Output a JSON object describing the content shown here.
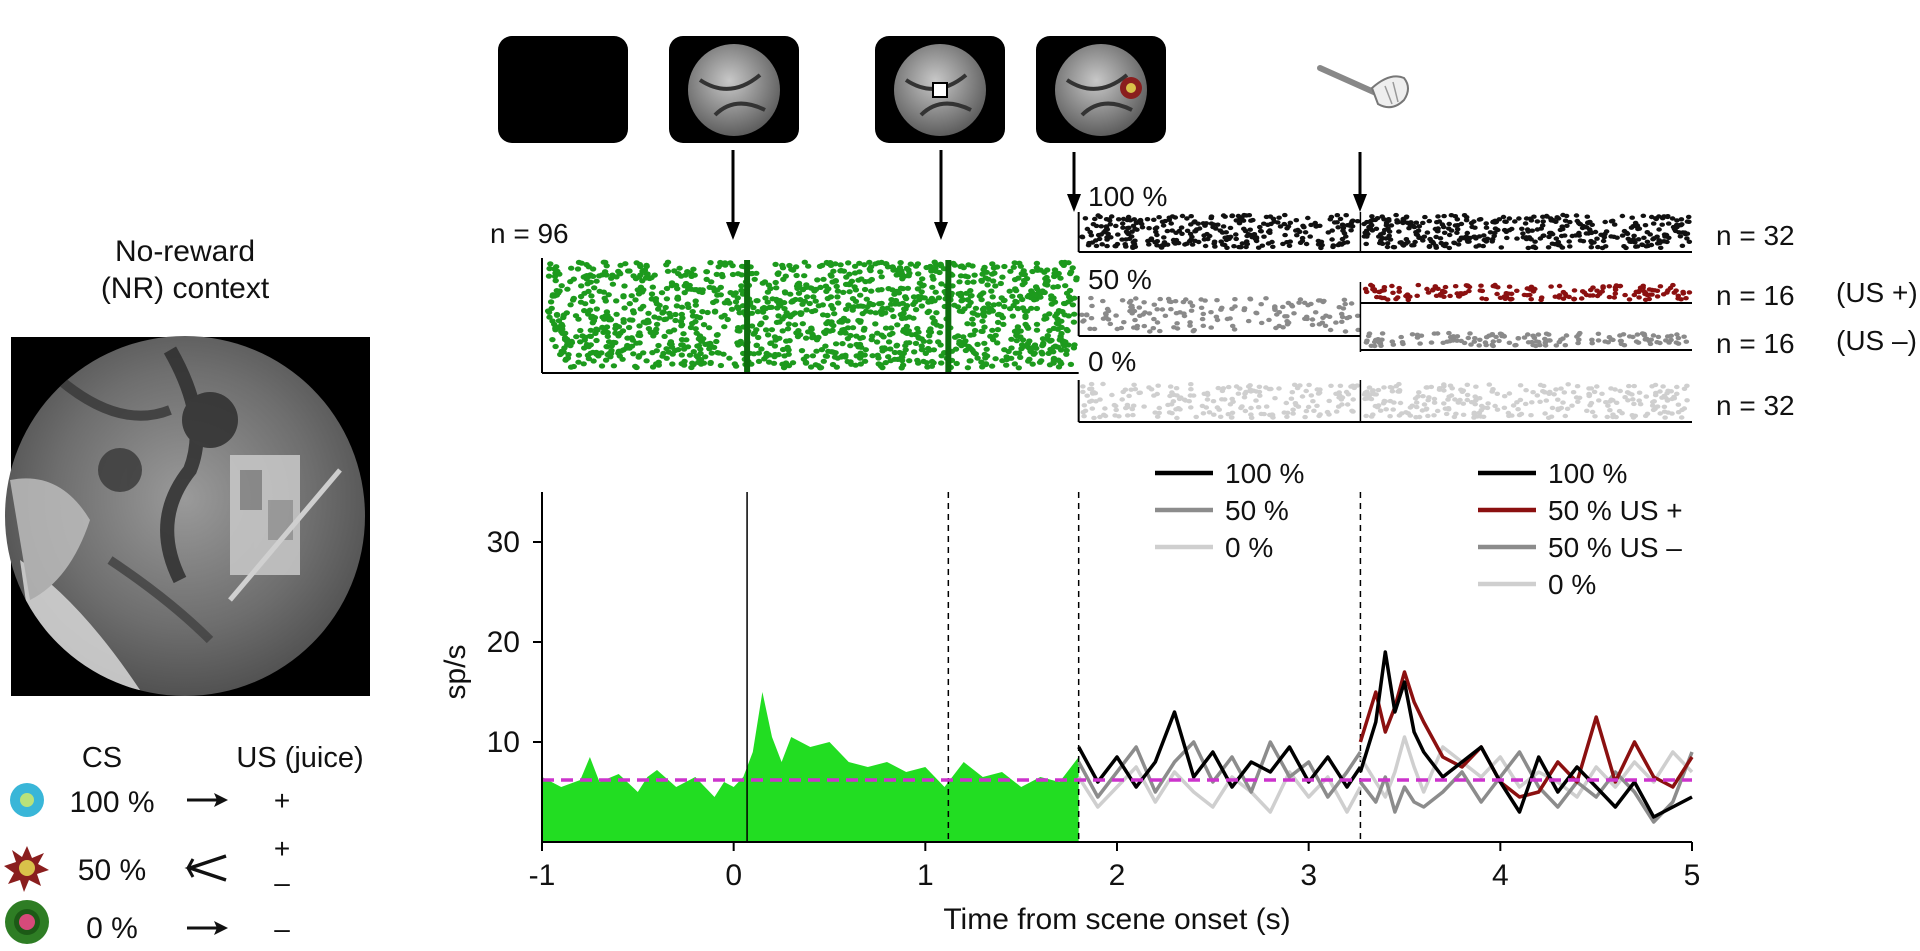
{
  "context": {
    "title_line1": "No-reward",
    "title_line2": "(NR) context"
  },
  "legend_table": {
    "cs_header": "CS",
    "us_header": "US (juice)",
    "rows": [
      {
        "prob": "100 %",
        "us": "+",
        "icon": "cyan-flower-icon",
        "color": "#39b6d8"
      },
      {
        "prob": "50 %",
        "us_plus": "+",
        "us_minus": "–",
        "icon": "star-burst-icon",
        "color": "#8a1e1e"
      },
      {
        "prob": "0 %",
        "us": "–",
        "icon": "green-gear-icon",
        "color": "#2e7d24"
      }
    ]
  },
  "timeline": {
    "stimulus_frames": [
      "blank-screen",
      "scene",
      "scene-with-fixation",
      "scene-with-cs"
    ],
    "reward_icon": "juice-spout-icon"
  },
  "raster": {
    "n_main": "n = 96",
    "main_color": "#1d9a1d",
    "groups": [
      {
        "label": "100 %",
        "n": "n = 32",
        "color": "#111111"
      },
      {
        "label": "50 %",
        "n_plus": "n = 16",
        "n_minus": "n = 16",
        "tag_plus": "(US +)",
        "tag_minus": "(US –)",
        "color": "#8a8a8a",
        "color_plus": "#8b1010"
      },
      {
        "label": "0 %",
        "n": "n = 32",
        "color": "#cfcfcf"
      }
    ]
  },
  "legend_cs": [
    {
      "label": "100 %",
      "color": "#000000"
    },
    {
      "label": "50 %",
      "color": "#8c8c8c"
    },
    {
      "label": "0 %",
      "color": "#cfcfcf"
    }
  ],
  "legend_us": [
    {
      "label": "100 %",
      "color": "#000000"
    },
    {
      "label": "50 % US +",
      "color": "#8b1010"
    },
    {
      "label": "50 % US –",
      "color": "#8c8c8c"
    },
    {
      "label": "0 %",
      "color": "#cfcfcf"
    }
  ],
  "chart_data": {
    "type": "line",
    "xlabel": "Time from scene onset (s)",
    "ylabel": "sp/s",
    "xlim": [
      -1,
      5
    ],
    "ylim": [
      0,
      35
    ],
    "xticks": [
      -1,
      0,
      1,
      2,
      3,
      4,
      5
    ],
    "xtick_labels": [
      "-1",
      "0",
      "1",
      "2",
      "3",
      "4",
      "5"
    ],
    "yticks": [
      10,
      20,
      30
    ],
    "ytick_labels": [
      "10",
      "20",
      "30"
    ],
    "event_lines": {
      "scene_onset": 0.07,
      "fixation": 1.12,
      "cs_onset": 1.8,
      "us_onset": 3.27
    },
    "baseline": 6.2,
    "baseline_color": "#cc33cc",
    "area_color": "#22dd22",
    "scene_response": {
      "x": [
        -1.0,
        -0.9,
        -0.8,
        -0.75,
        -0.7,
        -0.6,
        -0.5,
        -0.45,
        -0.4,
        -0.3,
        -0.2,
        -0.1,
        -0.05,
        0.0,
        0.05,
        0.1,
        0.15,
        0.2,
        0.25,
        0.3,
        0.4,
        0.5,
        0.6,
        0.7,
        0.8,
        0.9,
        1.0,
        1.1,
        1.2,
        1.3,
        1.4,
        1.5,
        1.6,
        1.7,
        1.8
      ],
      "y": [
        6.5,
        5.5,
        6.2,
        8.5,
        6.0,
        6.8,
        5.0,
        6.5,
        7.2,
        5.5,
        6.5,
        4.5,
        6.0,
        5.5,
        6.5,
        9.0,
        15.0,
        10.5,
        8.0,
        10.5,
        9.5,
        10.0,
        8.0,
        7.5,
        8.0,
        7.0,
        7.5,
        5.5,
        8.0,
        6.5,
        7.0,
        5.5,
        6.5,
        6.0,
        8.5
      ]
    },
    "series_cs": [
      {
        "name": "100 %",
        "color": "#000000",
        "x": [
          1.8,
          1.9,
          2.0,
          2.1,
          2.2,
          2.3,
          2.4,
          2.5,
          2.6,
          2.7,
          2.8,
          2.9,
          3.0,
          3.1,
          3.2,
          3.27
        ],
        "y": [
          9.5,
          6.0,
          8.5,
          5.5,
          8.0,
          13.0,
          6.5,
          9.0,
          5.5,
          8.0,
          7.0,
          9.5,
          6.0,
          8.5,
          5.5,
          7.5
        ]
      },
      {
        "name": "50 %",
        "color": "#8c8c8c",
        "x": [
          1.8,
          1.9,
          2.0,
          2.1,
          2.2,
          2.3,
          2.4,
          2.5,
          2.6,
          2.7,
          2.8,
          2.9,
          3.0,
          3.1,
          3.2,
          3.27
        ],
        "y": [
          8.0,
          4.5,
          7.0,
          9.5,
          5.0,
          8.0,
          10.0,
          6.0,
          8.5,
          5.0,
          10.0,
          6.5,
          8.0,
          4.5,
          7.0,
          9.0
        ]
      },
      {
        "name": "0 %",
        "color": "#cfcfcf",
        "x": [
          1.8,
          1.9,
          2.0,
          2.1,
          2.2,
          2.3,
          2.4,
          2.5,
          2.6,
          2.7,
          2.8,
          2.9,
          3.0,
          3.1,
          3.2,
          3.27
        ],
        "y": [
          6.5,
          3.5,
          5.5,
          7.5,
          4.0,
          7.0,
          5.0,
          3.5,
          6.5,
          5.0,
          3.0,
          7.0,
          4.5,
          6.5,
          3.0,
          5.5
        ]
      }
    ],
    "series_us": [
      {
        "name": "100 %",
        "color": "#000000",
        "x": [
          3.27,
          3.35,
          3.4,
          3.45,
          3.5,
          3.55,
          3.6,
          3.7,
          3.8,
          3.9,
          4.0,
          4.1,
          4.2,
          4.3,
          4.4,
          4.5,
          4.6,
          4.7,
          4.8,
          4.9,
          5.0
        ],
        "y": [
          7.0,
          12.0,
          19.0,
          13.0,
          16.0,
          11.0,
          9.0,
          6.5,
          8.0,
          9.5,
          6.0,
          3.0,
          8.5,
          5.0,
          7.5,
          5.5,
          3.5,
          6.0,
          2.5,
          3.5,
          4.5
        ]
      },
      {
        "name": "50 % US +",
        "color": "#8b1010",
        "x": [
          3.27,
          3.35,
          3.4,
          3.45,
          3.5,
          3.55,
          3.6,
          3.7,
          3.8,
          3.9,
          4.0,
          4.1,
          4.2,
          4.3,
          4.4,
          4.5,
          4.6,
          4.7,
          4.8,
          4.9,
          5.0
        ],
        "y": [
          10.0,
          15.0,
          11.0,
          13.5,
          17.0,
          14.0,
          12.0,
          8.5,
          7.5,
          9.5,
          6.0,
          4.5,
          5.0,
          8.0,
          6.0,
          12.5,
          6.0,
          10.0,
          6.5,
          5.5,
          8.5
        ]
      },
      {
        "name": "50 % US –",
        "color": "#8c8c8c",
        "x": [
          3.27,
          3.35,
          3.4,
          3.45,
          3.5,
          3.55,
          3.6,
          3.7,
          3.8,
          3.9,
          4.0,
          4.1,
          4.2,
          4.3,
          4.4,
          4.5,
          4.6,
          4.7,
          4.8,
          4.9,
          5.0
        ],
        "y": [
          6.0,
          4.0,
          6.5,
          3.0,
          5.5,
          4.0,
          3.5,
          5.0,
          7.0,
          4.0,
          6.5,
          9.0,
          5.5,
          3.5,
          6.0,
          4.5,
          7.0,
          5.0,
          2.0,
          4.0,
          9.0
        ]
      },
      {
        "name": "0 %",
        "color": "#cfcfcf",
        "x": [
          3.27,
          3.35,
          3.4,
          3.45,
          3.5,
          3.55,
          3.6,
          3.7,
          3.8,
          3.9,
          4.0,
          4.1,
          4.2,
          4.3,
          4.4,
          4.5,
          4.6,
          4.7,
          4.8,
          4.9,
          5.0
        ],
        "y": [
          8.5,
          6.0,
          4.5,
          7.0,
          10.5,
          7.5,
          5.0,
          9.5,
          8.0,
          6.5,
          8.5,
          5.5,
          7.0,
          6.0,
          4.5,
          7.5,
          5.5,
          8.0,
          6.0,
          9.0,
          7.0
        ]
      }
    ]
  }
}
